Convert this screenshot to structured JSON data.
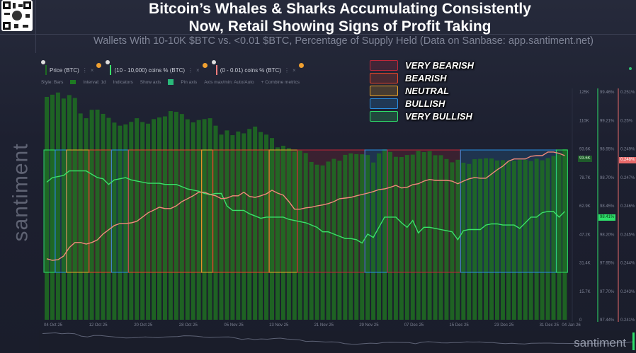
{
  "header": {
    "title_line1": "Bitcoin’s Whales & Sharks Accumulating Consistently",
    "title_line2": "Now, Retail Showing Signs of Profit Taking",
    "subtitle": "Wallets With 10-10K $BTC vs. <0.01 $BTC, Percentage of Supply Held (Data on Sanbase: app.santiment.net)"
  },
  "watermark": "santiment",
  "logo": "santiment",
  "toolbar": {
    "metrics": [
      {
        "label": "Price (BTC)",
        "color": "#1e6b22"
      },
      {
        "label": "(10 - 10,000) coins % (BTC)",
        "color": "#3be06a"
      },
      {
        "label": "(0 - 0.01) coins % (BTC)",
        "color": "#f07b7b"
      }
    ],
    "more_icon": "⋮",
    "close_icon": "×",
    "style_label": "Style: Bars",
    "interval_label": "Interval: 1d",
    "indicators_label": "Indicators",
    "show_axis_label": "Show axis",
    "pin_axis_label": "Pin axis",
    "axis_maxmin_label": "Axis max/min: Auto/Auto",
    "combine_label": "+ Combine metrics"
  },
  "legend": [
    {
      "label": "VERY BEARISH",
      "color": "#c0283a"
    },
    {
      "label": "BEARISH",
      "color": "#e8452a"
    },
    {
      "label": "NEUTRAL",
      "color": "#e8a22a"
    },
    {
      "label": "BULLISH",
      "color": "#2a8fe0"
    },
    {
      "label": "VERY BULLISH",
      "color": "#2ee06a"
    }
  ],
  "badges": {
    "price": "93.6K",
    "whales": "98.41%",
    "retail": "0.248%"
  },
  "chart_data": {
    "type": "bar+line",
    "x_ticks": [
      "04 Oct 25",
      "12 Oct 25",
      "20 Oct 25",
      "28 Oct 25",
      "05 Nov 25",
      "13 Nov 25",
      "21 Nov 25",
      "29 Nov 25",
      "07 Dec 25",
      "15 Dec 25",
      "23 Dec 25",
      "31 Dec 25",
      "04 Jan 26"
    ],
    "start_date": "2025-10-04",
    "end_date": "2026-01-04",
    "price_axis": {
      "ticks": [
        "125K",
        "110K",
        "93.6K",
        "78.7K",
        "62.9K",
        "47.2K",
        "31.4K",
        "15.7K",
        "0"
      ],
      "ylim": [
        0,
        125
      ]
    },
    "whales_axis": {
      "ticks": [
        "99.46%",
        "99.21%",
        "98.95%",
        "98.70%",
        "98.45%",
        "98.20%",
        "97.95%",
        "97.70%",
        "97.44%"
      ],
      "ylim": [
        97.44,
        99.46
      ]
    },
    "retail_axis": {
      "ticks": [
        "0.251%",
        "0.25%",
        "0.249%",
        "0.247%",
        "0.246%",
        "0.245%",
        "0.244%",
        "0.243%",
        "0.241%"
      ],
      "ylim": [
        0.241,
        0.2512
      ]
    },
    "series": [
      {
        "name": "Price (BTC)",
        "kind": "bar",
        "unit": "K USD",
        "color": "#1e6e22",
        "values": [
          122.3,
          123.5,
          124.7,
          121.4,
          123.3,
          121.7,
          113.2,
          110.6,
          115.2,
          115.3,
          113.0,
          110.8,
          108.2,
          106.5,
          107.2,
          108.6,
          110.6,
          108.5,
          107.6,
          110.1,
          111.0,
          111.6,
          114.5,
          114.1,
          112.9,
          110.0,
          108.3,
          109.6,
          110.1,
          110.6,
          106.5,
          101.6,
          103.9,
          101.3,
          103.3,
          102.3,
          104.7,
          106.0,
          103.0,
          101.6,
          99.7,
          94.6,
          95.5,
          94.2,
          92.2,
          92.9,
          91.5,
          86.6,
          85.1,
          84.7,
          86.8,
          88.3,
          87.3,
          90.5,
          91.3,
          90.9,
          90.8,
          90.4,
          86.3,
          91.3,
          93.5,
          92.1,
          89.4,
          89.3,
          90.4,
          90.6,
          92.7,
          92.0,
          92.5,
          90.3,
          90.3,
          88.2,
          86.4,
          87.8,
          86.2,
          85.5,
          88.1,
          88.3,
          88.6,
          88.5,
          87.4,
          87.6,
          87.3,
          87.3,
          87.8,
          87.8,
          87.1,
          88.4,
          87.5,
          88.7,
          89.9,
          90.6,
          93.6
        ]
      },
      {
        "name": "(10 - 10,000) coins % (BTC)",
        "kind": "line",
        "axis": "whales",
        "color": "#3be06a",
        "values": [
          98.66,
          98.7,
          98.71,
          98.72,
          98.76,
          98.76,
          98.76,
          98.76,
          98.73,
          98.7,
          98.69,
          98.64,
          98.68,
          98.69,
          98.7,
          98.68,
          98.67,
          98.66,
          98.65,
          98.65,
          98.65,
          98.64,
          98.64,
          98.64,
          98.62,
          98.6,
          98.59,
          98.58,
          98.56,
          98.55,
          98.56,
          98.56,
          98.45,
          98.41,
          98.41,
          98.41,
          98.38,
          98.36,
          98.34,
          98.35,
          98.35,
          98.35,
          98.35,
          98.33,
          98.32,
          98.31,
          98.3,
          98.28,
          98.26,
          98.22,
          98.22,
          98.2,
          98.18,
          98.16,
          98.16,
          98.15,
          98.12,
          98.2,
          98.17,
          98.26,
          98.35,
          98.35,
          98.35,
          98.3,
          98.26,
          98.32,
          98.21,
          98.26,
          98.26,
          98.25,
          98.24,
          98.23,
          98.22,
          98.15,
          98.23,
          98.24,
          98.24,
          98.24,
          98.28,
          98.29,
          98.29,
          98.28,
          98.28,
          98.28,
          98.25,
          98.3,
          98.35,
          98.35,
          98.39,
          98.4,
          98.4,
          98.35,
          98.4
        ]
      },
      {
        "name": "(0 - 0.01) coins % (BTC)",
        "kind": "line",
        "axis": "retail",
        "color": "#f08a7a",
        "values": [
          0.24373,
          0.24366,
          0.24369,
          0.24385,
          0.24423,
          0.24446,
          0.24446,
          0.24439,
          0.24446,
          0.24458,
          0.24484,
          0.24503,
          0.24522,
          0.24531,
          0.24531,
          0.24534,
          0.24541,
          0.2456,
          0.24579,
          0.24591,
          0.24604,
          0.24598,
          0.24598,
          0.2461,
          0.24629,
          0.24642,
          0.24655,
          0.24671,
          0.24671,
          0.24661,
          0.24655,
          0.24642,
          0.24645,
          0.24655,
          0.24655,
          0.24671,
          0.24652,
          0.24648,
          0.24655,
          0.24664,
          0.2468,
          0.24667,
          0.24658,
          0.24629,
          0.24595,
          0.24595,
          0.24601,
          0.24604,
          0.2461,
          0.24614,
          0.2462,
          0.24629,
          0.24642,
          0.24645,
          0.24648,
          0.24655,
          0.24661,
          0.24667,
          0.24674,
          0.24683,
          0.24686,
          0.24693,
          0.24702,
          0.2469,
          0.24693,
          0.24705,
          0.24709,
          0.24721,
          0.24728,
          0.24724,
          0.24724,
          0.24724,
          0.24721,
          0.24709,
          0.24721,
          0.24731,
          0.24737,
          0.24734,
          0.24734,
          0.24753,
          0.24772,
          0.24788,
          0.2481,
          0.2482,
          0.2482,
          0.2482,
          0.24832,
          0.24835,
          0.24835,
          0.24851,
          0.24851,
          0.24845,
          0.24835
        ]
      }
    ],
    "sentiment_zones": [
      {
        "start": "2025-10-04",
        "end": "2025-10-05",
        "sentiment": "VERY BULLISH"
      },
      {
        "start": "2025-10-06",
        "end": "2025-10-07",
        "sentiment": "BULLISH"
      },
      {
        "start": "2025-10-08",
        "end": "2025-10-11",
        "sentiment": "NEUTRAL"
      },
      {
        "start": "2025-10-12",
        "end": "2025-10-15",
        "sentiment": "BEARISH"
      },
      {
        "start": "2025-10-16",
        "end": "2025-10-18",
        "sentiment": "BULLISH"
      },
      {
        "start": "2025-10-19",
        "end": "2025-10-31",
        "sentiment": "BEARISH"
      },
      {
        "start": "2025-11-01",
        "end": "2025-11-02",
        "sentiment": "NEUTRAL"
      },
      {
        "start": "2025-11-03",
        "end": "2025-11-12",
        "sentiment": "BEARISH"
      },
      {
        "start": "2025-11-13",
        "end": "2025-11-17",
        "sentiment": "NEUTRAL"
      },
      {
        "start": "2025-11-18",
        "end": "2025-11-29",
        "sentiment": "VERY BEARISH"
      },
      {
        "start": "2025-11-30",
        "end": "2025-12-03",
        "sentiment": "BULLISH"
      },
      {
        "start": "2025-12-04",
        "end": "2025-12-16",
        "sentiment": "VERY BEARISH"
      },
      {
        "start": "2025-12-17",
        "end": "2026-01-02",
        "sentiment": "BULLISH"
      },
      {
        "start": "2026-01-03",
        "end": "2026-01-04",
        "sentiment": "VERY BULLISH"
      }
    ],
    "grid": false,
    "legend_position": "top-center"
  }
}
